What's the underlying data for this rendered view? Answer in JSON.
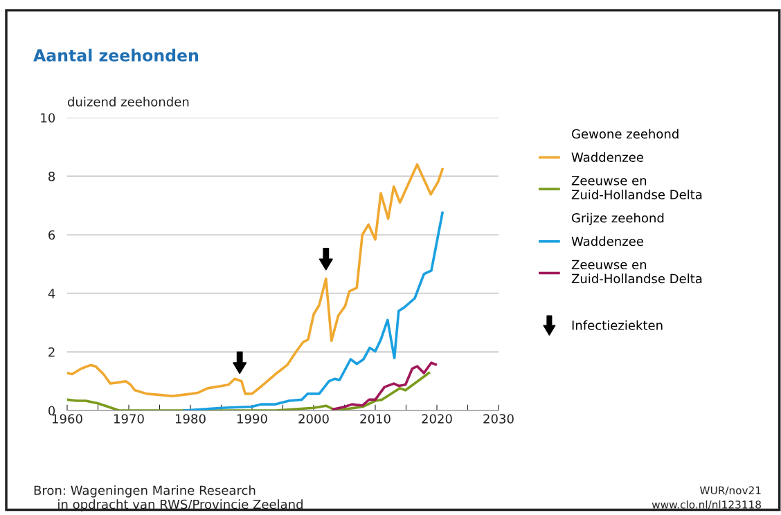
{
  "chart_data": {
    "type": "line",
    "title": "Aantal zeehonden",
    "ylabel": "duizend zeehonden",
    "xlim": [
      1960,
      2030
    ],
    "ylim": [
      0,
      10
    ],
    "xticks": [
      1960,
      {
        "value": 1965,
        "label": null
      },
      1970,
      {
        "value": 1975,
        "label": null
      },
      1980,
      {
        "value": 1985,
        "label": null
      },
      1990,
      {
        "value": 1995,
        "label": null
      },
      2000,
      {
        "value": 2005,
        "label": null
      },
      2010,
      {
        "value": 2015,
        "label": null
      },
      2020,
      {
        "value": 2025,
        "label": null
      },
      2030
    ],
    "yticks": [
      0,
      2,
      4,
      6,
      8,
      10
    ],
    "grid": "y",
    "legend": "right",
    "marker": "none",
    "line_style": "solid",
    "series": [
      {
        "name": "Waddenzee",
        "color": "#f0a830",
        "x": [
          1960,
          1960.8,
          1962.3,
          1963.8,
          1964.6,
          1965.9,
          1967,
          1968.4,
          1969.5,
          1970.3,
          1971,
          1972.9,
          1975.2,
          1977.1,
          1980.2,
          1981.3,
          1982.8,
          1985.1,
          1986.2,
          1987.2,
          1988.3,
          1988.9,
          1990,
          1991.6,
          1993.8,
          1995.7,
          1997.2,
          1998.3,
          1999.1,
          2000,
          2000.9,
          2002,
          2002.9,
          2004,
          2005.1,
          2005.8,
          2007,
          2007.9,
          2008.9,
          2010,
          2010.9,
          2012.1,
          2013,
          2014,
          2015.7,
          2016.8,
          2019,
          2020.2,
          2020.9
        ],
        "values": [
          1.28,
          1.24,
          1.43,
          1.55,
          1.51,
          1.24,
          0.92,
          0.96,
          1.0,
          0.88,
          0.69,
          0.57,
          0.53,
          0.49,
          0.57,
          0.61,
          0.76,
          0.84,
          0.88,
          1.08,
          1.0,
          0.57,
          0.57,
          0.84,
          1.24,
          1.55,
          2.02,
          2.34,
          2.42,
          3.28,
          3.6,
          4.5,
          2.38,
          3.24,
          3.56,
          4.07,
          4.19,
          6.0,
          6.35,
          5.84,
          7.42,
          6.55,
          7.65,
          7.1,
          7.89,
          8.4,
          7.38,
          7.81,
          8.24
        ]
      },
      {
        "name": "Zeeuwse en\nZuid-Hollandse Delta",
        "color": "#7a9a1e",
        "x": [
          1960,
          1961.5,
          1963,
          1964.9,
          1967.2,
          1968.4,
          1980,
          1990,
          1993.8,
          2000,
          2002,
          2003,
          2005,
          2008,
          2010,
          2011.1,
          2014,
          2014.9,
          2018.7
        ],
        "values": [
          0.37,
          0.33,
          0.33,
          0.25,
          0.09,
          0,
          0,
          0,
          0,
          0.09,
          0.16,
          0.06,
          0.04,
          0.13,
          0.33,
          0.37,
          0.76,
          0.69,
          1.28
        ]
      },
      {
        "name": "Waddenzee",
        "color": "#1aa0e0",
        "x": [
          1979,
          1985.1,
          1990,
          1991.5,
          1993.8,
          1996,
          1998.1,
          1999,
          2000.9,
          2002.5,
          2003.4,
          2004.2,
          2006,
          2007,
          2008.1,
          2009.1,
          2010,
          2010.9,
          2012,
          2013.1,
          2013.8,
          2014.7,
          2016.4,
          2017.9,
          2019.1,
          2020.9
        ],
        "values": [
          0,
          0.09,
          0.13,
          0.21,
          0.21,
          0.33,
          0.37,
          0.57,
          0.57,
          1.0,
          1.08,
          1.04,
          1.75,
          1.59,
          1.75,
          2.14,
          2.02,
          2.42,
          3.09,
          1.79,
          3.4,
          3.52,
          3.83,
          4.66,
          4.78,
          6.75
        ]
      },
      {
        "name": "Zeeuwse en\nZuid-Hollandse Delta",
        "color": "#a0185a",
        "x": [
          2003.2,
          2005.1,
          2006.2,
          2007.9,
          2009,
          2010,
          2011.5,
          2013,
          2013.8,
          2014.9,
          2016,
          2016.8,
          2017.9,
          2019.1,
          2019.8
        ],
        "values": [
          0.04,
          0.13,
          0.21,
          0.17,
          0.37,
          0.37,
          0.8,
          0.92,
          0.84,
          0.88,
          1.43,
          1.51,
          1.28,
          1.63,
          1.57
        ]
      },
      {
        "name": "Infectieziekten",
        "type": "scatter",
        "color": "#000000",
        "x": [
          1988,
          2002
        ],
        "values": [
          1.63,
          5.17
        ]
      }
    ],
    "annotations": [
      "Gewone zeehond",
      "Grijze zeehond",
      "Bron: Wageningen Marine Research\n      in opdracht van RWS/Provincie Zeeland",
      "WUR/nov21\nwww.clo.nl/nl123118"
    ]
  }
}
